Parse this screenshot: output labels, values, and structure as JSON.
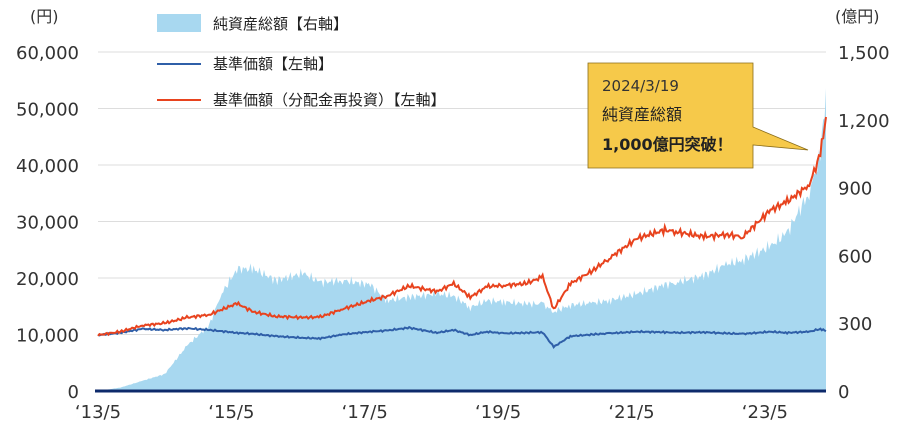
{
  "chart_data": {
    "type": "area",
    "left_axis_unit": "(円)",
    "right_axis_unit": "(億円)",
    "left_ticks": [
      "0",
      "10,000",
      "20,000",
      "30,000",
      "40,000",
      "50,000",
      "60,000"
    ],
    "left_ylim": [
      0,
      60000
    ],
    "right_ticks": [
      "0",
      "300",
      "600",
      "900",
      "1,200",
      "1,500"
    ],
    "right_ylim": [
      0,
      1500
    ],
    "x_tick_labels": [
      "‘13/5",
      "‘15/5",
      "‘17/5",
      "‘19/5",
      "‘21/5",
      "‘23/5"
    ],
    "x_range": [
      "2013-05",
      "2024-04"
    ],
    "grid": "horizontal",
    "legend_position": "top-left",
    "colors": {
      "area": "#a8d8f0",
      "base_price": "#2f5fa8",
      "reinvested": "#e8431e",
      "axis": "#0d2a6b",
      "callout": "#f6c94a"
    },
    "series": [
      {
        "name": "純資産総額【右軸】",
        "kind": "area",
        "axis": "right",
        "x": [
          "2013-05",
          "2013-09",
          "2014-01",
          "2014-05",
          "2014-09",
          "2015-01",
          "2015-03",
          "2015-06",
          "2015-09",
          "2016-01",
          "2016-06",
          "2016-09",
          "2017-01",
          "2017-06",
          "2017-09",
          "2018-01",
          "2018-06",
          "2018-09",
          "2018-12",
          "2019-03",
          "2019-06",
          "2019-10",
          "2020-01",
          "2020-03",
          "2020-06",
          "2020-10",
          "2021-01",
          "2021-06",
          "2021-11",
          "2022-01",
          "2022-06",
          "2022-10",
          "2023-01",
          "2023-06",
          "2023-09",
          "2024-01",
          "2024-03",
          "2024-04"
        ],
        "values": [
          0,
          15,
          45,
          75,
          200,
          290,
          420,
          540,
          540,
          490,
          520,
          480,
          490,
          470,
          400,
          415,
          430,
          420,
          370,
          400,
          395,
          385,
          385,
          350,
          380,
          390,
          400,
          430,
          470,
          480,
          510,
          560,
          580,
          640,
          700,
          880,
          1040,
          1340
        ]
      },
      {
        "name": "基準価額【左軸】",
        "kind": "line",
        "axis": "left",
        "x": [
          "2013-05",
          "2013-09",
          "2014-01",
          "2014-05",
          "2014-09",
          "2015-01",
          "2015-06",
          "2015-09",
          "2016-01",
          "2016-06",
          "2016-09",
          "2017-01",
          "2017-06",
          "2017-09",
          "2018-01",
          "2018-06",
          "2018-09",
          "2018-12",
          "2019-03",
          "2019-06",
          "2019-10",
          "2020-01",
          "2020-03",
          "2020-06",
          "2020-10",
          "2021-01",
          "2021-06",
          "2021-11",
          "2022-01",
          "2022-06",
          "2022-10",
          "2023-01",
          "2023-06",
          "2023-09",
          "2024-01",
          "2024-03",
          "2024-04"
        ],
        "values": [
          9900,
          10300,
          11000,
          10800,
          11100,
          10800,
          10300,
          10100,
          9700,
          9400,
          9300,
          10000,
          10500,
          10700,
          11200,
          10300,
          10800,
          9900,
          10500,
          10200,
          10300,
          10400,
          7800,
          9700,
          10000,
          10200,
          10500,
          10400,
          10300,
          10400,
          10200,
          10100,
          10500,
          10300,
          10500,
          11000,
          10600
        ]
      },
      {
        "name": "基準価額（分配金再投資）【左軸】",
        "kind": "line",
        "axis": "left",
        "x": [
          "2013-05",
          "2013-09",
          "2014-01",
          "2014-05",
          "2014-09",
          "2015-01",
          "2015-06",
          "2015-09",
          "2016-01",
          "2016-06",
          "2016-09",
          "2017-01",
          "2017-06",
          "2017-09",
          "2018-01",
          "2018-06",
          "2018-09",
          "2018-12",
          "2019-03",
          "2019-06",
          "2019-10",
          "2020-01",
          "2020-03",
          "2020-06",
          "2020-10",
          "2021-01",
          "2021-06",
          "2021-11",
          "2022-01",
          "2022-06",
          "2022-10",
          "2023-01",
          "2023-06",
          "2023-09",
          "2024-01",
          "2024-03",
          "2024-04"
        ],
        "values": [
          9900,
          10500,
          11600,
          12000,
          13000,
          13500,
          15500,
          14000,
          13200,
          13000,
          13100,
          14500,
          16000,
          16800,
          18600,
          17600,
          19000,
          16600,
          18500,
          18700,
          19000,
          20200,
          14500,
          19000,
          21300,
          23500,
          27000,
          28500,
          28200,
          27300,
          27700,
          27300,
          32000,
          33500,
          36500,
          42000,
          48500
        ]
      }
    ]
  },
  "legend": {
    "area_label": "純資産総額【右軸】",
    "base_label": "基準価額【左軸】",
    "reinvest_label": "基準価額（分配金再投資）【左軸】"
  },
  "callout": {
    "date": "2024/3/19",
    "line1": "純資産総額",
    "line2": "1,000億円突破！"
  }
}
